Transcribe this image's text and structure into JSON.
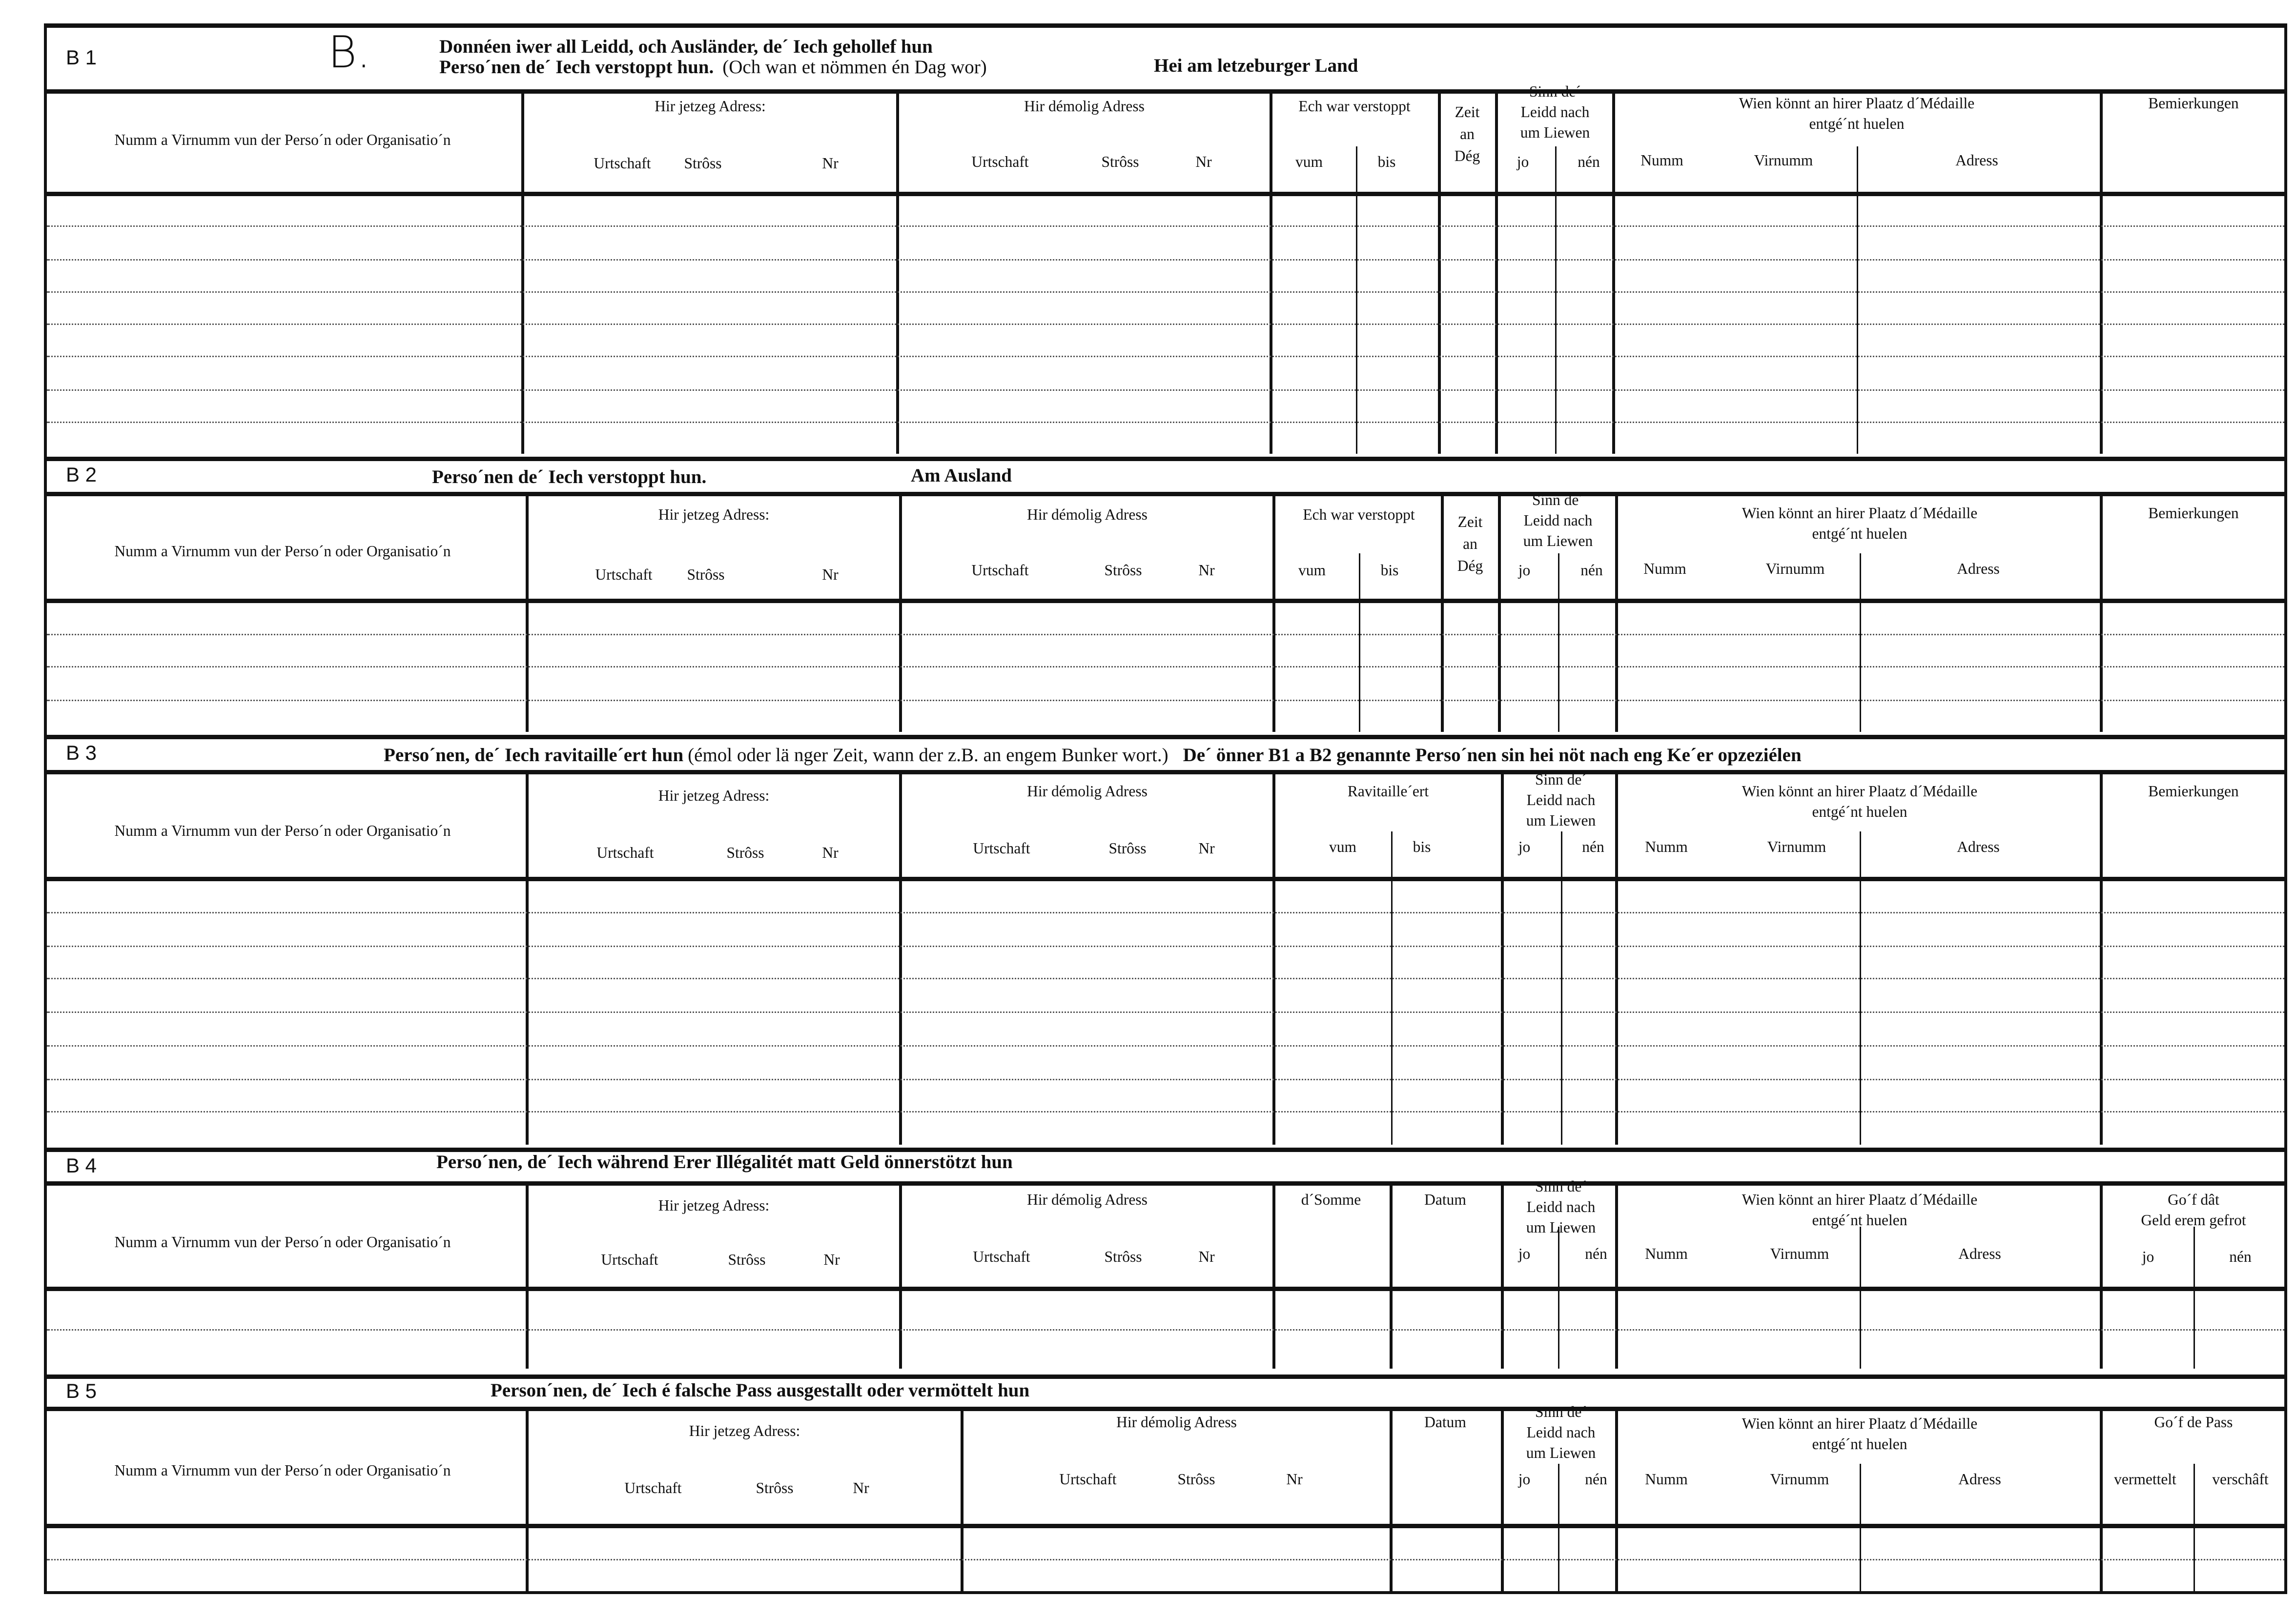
{
  "form_letter": "B.",
  "labels": {
    "name_col": "Numm a Virnumm vun der Perso´n oder Organisatio´n",
    "current_address": "Hir jetzeg Adress:",
    "former_address": "Hir démolig Adress",
    "urtschaft": "Urtschaft",
    "stross": "Strôss",
    "nr": "Nr",
    "hidden": "Ech war verstoppt",
    "vum": "vum",
    "bis": "bis",
    "zeit": [
      "Zeit",
      "an",
      "Dég"
    ],
    "sinn": [
      "Sinn de´",
      "Leidd nach",
      "um Liewen"
    ],
    "jo": "jo",
    "nen": "nén",
    "wien": [
      "Wien könnt an hirer Plaatz d´Médaille",
      "entgé´nt huelen"
    ],
    "numm": "Numm",
    "virnumm": "Virnumm",
    "adress": "Adress",
    "bemierkungen": "Bemierkungen",
    "ravitailleert": "Ravitaille´ert",
    "somme": "d´Somme",
    "datum": "Datum",
    "geld_gefrot": [
      "Go´f dât",
      "Geld erem gefrot"
    ],
    "pass": "Go´f de Pass",
    "vermettelt": "vermettelt",
    "verschaft": "verschâft"
  },
  "sections": [
    {
      "code": "B 1",
      "title_lines": [
        "Donnéen iwer all Leidd, och Ausländer, de´ Iech gehollef hun",
        "Perso´nen de´ Iech verstoppt hun."
      ],
      "title_note": "(Och wan et nömmen én Dag wor)",
      "location": "Hei am letzeburger Land"
    },
    {
      "code": "B 2",
      "title": "Perso´nen de´ Iech verstoppt hun.",
      "location": "Am Ausland"
    },
    {
      "code": "B 3",
      "title": "Perso´nen, de´ Iech ravitaille´ert hun",
      "title_note": "(émol oder lä nger Zeit, wann der z.B. an engem Bunker wort.)",
      "title_extra": "De´ önner B1 a B2 genannte Perso´nen sin hei nöt nach eng Ke´er opzeziélen"
    },
    {
      "code": "B 4",
      "title": "Perso´nen, de´ Iech während Erer Illégalitét matt Geld önnerstötzt hun"
    },
    {
      "code": "B 5",
      "title": "Person´nen, de´ Iech é falsche Pass ausgestallt oder vermöttelt hun"
    }
  ]
}
